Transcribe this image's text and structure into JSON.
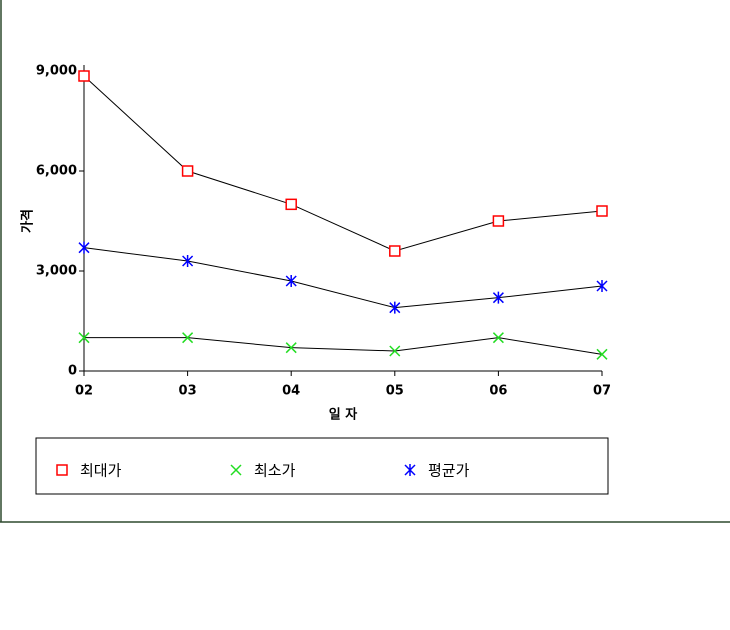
{
  "chart_data": {
    "type": "line",
    "x_label": "일 자",
    "y_label": "가격",
    "categories": [
      "02",
      "03",
      "04",
      "05",
      "06",
      "07"
    ],
    "series": [
      {
        "name": "최대가",
        "color": "#ff0000",
        "marker": "square",
        "values": [
          8850,
          6000,
          5000,
          3600,
          4500,
          4800
        ]
      },
      {
        "name": "최소가",
        "color": "#22dd22",
        "marker": "x",
        "values": [
          1000,
          1000,
          700,
          600,
          1000,
          500
        ]
      },
      {
        "name": "평균가",
        "color": "#0000ff",
        "marker": "star",
        "values": [
          3700,
          3300,
          2700,
          1900,
          2200,
          2550
        ]
      }
    ],
    "line_color": "#000000",
    "ylim": [
      0,
      9000
    ],
    "yticks": [
      0,
      {
        "value": 3000,
        "label": "3,000"
      },
      {
        "value": 6000,
        "label": "6,000"
      },
      {
        "value": 9000,
        "label": "9,000"
      }
    ],
    "legend": "bottom"
  }
}
